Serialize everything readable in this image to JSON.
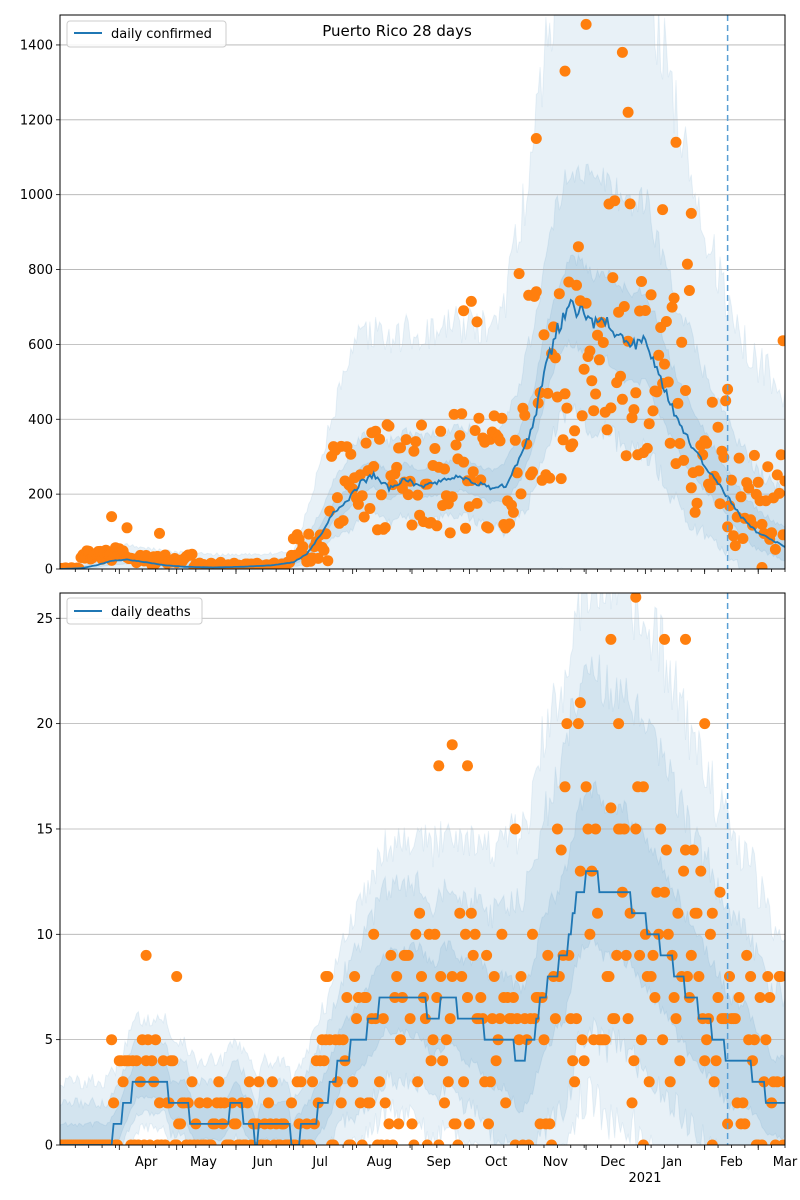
{
  "figure": {
    "title": "Puerto Rico 28 days",
    "x_tick_labels": [
      "Apr",
      "May",
      "Jun",
      "Jul",
      "Aug",
      "Sep",
      "Oct",
      "Nov",
      "Dec",
      "Jan",
      "Feb",
      "Mar"
    ],
    "x_year_label": "2021"
  },
  "chart_data": [
    {
      "type": "line",
      "legend": "daily confirmed",
      "legend_placement": "top-left",
      "grid": "horizontal",
      "xlim": [
        "2020-03-01",
        "2021-03-15"
      ],
      "ylim": [
        0,
        1480
      ],
      "yticks": [
        0,
        200,
        400,
        600,
        800,
        1000,
        1200,
        1400
      ],
      "forecast_start": "2021-02-13",
      "colors": {
        "line": "#1f77b4",
        "points": "#ff7f0e",
        "band": "#1f77b4",
        "vline": "#1f77b4"
      },
      "median_knots": [
        [
          "2020-03-01",
          0
        ],
        [
          "2020-03-12",
          2
        ],
        [
          "2020-03-20",
          10
        ],
        [
          "2020-03-28",
          22
        ],
        [
          "2020-04-05",
          25
        ],
        [
          "2020-04-15",
          18
        ],
        [
          "2020-04-25",
          10
        ],
        [
          "2020-05-05",
          6
        ],
        [
          "2020-05-20",
          4
        ],
        [
          "2020-06-05",
          6
        ],
        [
          "2020-06-20",
          10
        ],
        [
          "2020-07-01",
          18
        ],
        [
          "2020-07-08",
          40
        ],
        [
          "2020-07-15",
          90
        ],
        [
          "2020-07-22",
          150
        ],
        [
          "2020-07-29",
          180
        ],
        [
          "2020-08-05",
          230
        ],
        [
          "2020-08-12",
          250
        ],
        [
          "2020-08-20",
          215
        ],
        [
          "2020-08-28",
          240
        ],
        [
          "2020-09-05",
          220
        ],
        [
          "2020-09-12",
          230
        ],
        [
          "2020-09-20",
          240
        ],
        [
          "2020-09-28",
          245
        ],
        [
          "2020-10-05",
          230
        ],
        [
          "2020-10-12",
          215
        ],
        [
          "2020-10-20",
          225
        ],
        [
          "2020-10-28",
          300
        ],
        [
          "2020-11-04",
          400
        ],
        [
          "2020-11-10",
          540
        ],
        [
          "2020-11-16",
          640
        ],
        [
          "2020-11-22",
          700
        ],
        [
          "2020-11-28",
          690
        ],
        [
          "2020-12-05",
          650
        ],
        [
          "2020-12-12",
          660
        ],
        [
          "2020-12-18",
          620
        ],
        [
          "2020-12-25",
          600
        ],
        [
          "2021-01-01",
          605
        ],
        [
          "2021-01-08",
          520
        ],
        [
          "2021-01-15",
          430
        ],
        [
          "2021-01-22",
          360
        ],
        [
          "2021-01-29",
          300
        ],
        [
          "2021-02-05",
          250
        ],
        [
          "2021-02-12",
          200
        ],
        [
          "2021-02-20",
          140
        ],
        [
          "2021-02-28",
          100
        ],
        [
          "2021-03-07",
          80
        ],
        [
          "2021-03-15",
          60
        ]
      ],
      "band_half_width": [
        [
          0.2,
          [
            [
              "2020-03-01",
              0
            ],
            [
              "2020-07-01",
              8
            ],
            [
              "2020-08-01",
              40
            ],
            [
              "2020-10-15",
              50
            ],
            [
              "2020-11-25",
              130
            ],
            [
              "2021-01-01",
              140
            ],
            [
              "2021-02-13",
              70
            ],
            [
              "2021-03-15",
              50
            ]
          ]
        ],
        [
          0.45,
          [
            [
              "2020-03-01",
              0
            ],
            [
              "2020-04-01",
              15
            ],
            [
              "2020-07-01",
              15
            ],
            [
              "2020-08-01",
              120
            ],
            [
              "2020-10-15",
              140
            ],
            [
              "2020-11-25",
              380
            ],
            [
              "2021-01-01",
              380
            ],
            [
              "2021-02-13",
              200
            ],
            [
              "2021-03-15",
              140
            ]
          ]
        ],
        [
          0.75,
          [
            [
              "2020-03-01",
              0
            ],
            [
              "2020-04-01",
              40
            ],
            [
              "2020-07-01",
              30
            ],
            [
              "2020-08-01",
              380
            ],
            [
              "2020-10-15",
              420
            ],
            [
              "2020-11-25",
              1100
            ],
            [
              "2021-01-01",
              1000
            ],
            [
              "2021-02-13",
              500
            ],
            [
              "2021-03-15",
              420
            ]
          ]
        ]
      ],
      "observed": {
        "segments": [
          {
            "from": "2020-03-01",
            "to": "2020-03-12",
            "base": 2,
            "spread": 4,
            "seed": 1
          },
          {
            "from": "2020-03-12",
            "to": "2020-04-10",
            "base": 40,
            "spread": 35,
            "seed": 2
          },
          {
            "from": "2020-04-10",
            "to": "2020-05-10",
            "base": 25,
            "spread": 30,
            "seed": 3
          },
          {
            "from": "2020-05-10",
            "to": "2020-06-30",
            "base": 10,
            "spread": 18,
            "seed": 4
          },
          {
            "from": "2020-06-30",
            "to": "2020-07-20",
            "base": 60,
            "spread": 90,
            "seed": 5
          },
          {
            "from": "2020-07-20",
            "to": "2020-08-10",
            "base": 220,
            "spread": 250,
            "seed": 6
          },
          {
            "from": "2020-08-10",
            "to": "2020-09-20",
            "base": 240,
            "spread": 300,
            "seed": 7
          },
          {
            "from": "2020-09-20",
            "to": "2020-10-25",
            "base": 260,
            "spread": 330,
            "seed": 8
          },
          {
            "from": "2020-10-25",
            "to": "2020-11-20",
            "base": 500,
            "spread": 600,
            "seed": 9
          },
          {
            "from": "2020-11-20",
            "to": "2020-12-25",
            "base": 650,
            "spread": 700,
            "seed": 10
          },
          {
            "from": "2020-12-25",
            "to": "2021-01-25",
            "base": 560,
            "spread": 600,
            "seed": 11
          },
          {
            "from": "2021-01-25",
            "to": "2021-02-13",
            "base": 300,
            "spread": 320,
            "seed": 12
          },
          {
            "from": "2021-02-13",
            "to": "2021-03-15",
            "base": 180,
            "spread": 260,
            "seed": 13
          }
        ],
        "highlights": [
          [
            "2020-03-28",
            140
          ],
          [
            "2020-04-05",
            110
          ],
          [
            "2020-04-22",
            95
          ],
          [
            "2020-10-02",
            715
          ],
          [
            "2020-10-05",
            660
          ],
          [
            "2020-09-28",
            690
          ],
          [
            "2020-11-05",
            1150
          ],
          [
            "2020-11-20",
            1330
          ],
          [
            "2020-12-01",
            1455
          ],
          [
            "2020-12-20",
            1380
          ],
          [
            "2020-12-23",
            1220
          ],
          [
            "2021-01-17",
            1140
          ],
          [
            "2021-01-10",
            960
          ],
          [
            "2021-01-25",
            950
          ],
          [
            "2021-03-14",
            610
          ],
          [
            "2021-03-15",
            235
          ],
          [
            "2021-03-03",
            4
          ],
          [
            "2021-02-13",
            480
          ]
        ]
      }
    },
    {
      "type": "line",
      "legend": "daily deaths",
      "legend_placement": "top-left",
      "grid": "horizontal",
      "xlim": [
        "2020-03-01",
        "2021-03-15"
      ],
      "ylim": [
        0,
        26.2
      ],
      "yticks": [
        0,
        5,
        10,
        15,
        20,
        25
      ],
      "forecast_start": "2021-02-13",
      "colors": {
        "line": "#1f77b4",
        "points": "#ff7f0e",
        "band": "#1f77b4",
        "vline": "#1f77b4"
      },
      "median_knots": [
        [
          "2020-03-01",
          0
        ],
        [
          "2020-03-26",
          0
        ],
        [
          "2020-04-01",
          1
        ],
        [
          "2020-04-05",
          2
        ],
        [
          "2020-04-10",
          3
        ],
        [
          "2020-04-25",
          3
        ],
        [
          "2020-04-28",
          2
        ],
        [
          "2020-05-05",
          2
        ],
        [
          "2020-05-10",
          1
        ],
        [
          "2020-05-25",
          1
        ],
        [
          "2020-06-01",
          2
        ],
        [
          "2020-06-08",
          1
        ],
        [
          "2020-06-12",
          0
        ],
        [
          "2020-06-14",
          1
        ],
        [
          "2020-06-28",
          1
        ],
        [
          "2020-06-30",
          0
        ],
        [
          "2020-07-10",
          1
        ],
        [
          "2020-07-18",
          2
        ],
        [
          "2020-07-26",
          4
        ],
        [
          "2020-08-05",
          5
        ],
        [
          "2020-08-12",
          6
        ],
        [
          "2020-08-18",
          7
        ],
        [
          "2020-09-05",
          7
        ],
        [
          "2020-09-12",
          6
        ],
        [
          "2020-09-20",
          7
        ],
        [
          "2020-09-28",
          6
        ],
        [
          "2020-10-05",
          6
        ],
        [
          "2020-10-12",
          5
        ],
        [
          "2020-10-20",
          5
        ],
        [
          "2020-10-28",
          4
        ],
        [
          "2020-11-03",
          5
        ],
        [
          "2020-11-08",
          7
        ],
        [
          "2020-11-14",
          8
        ],
        [
          "2020-11-20",
          9
        ],
        [
          "2020-11-27",
          12
        ],
        [
          "2020-12-05",
          13
        ],
        [
          "2020-12-10",
          12
        ],
        [
          "2020-12-20",
          12
        ],
        [
          "2020-12-28",
          11
        ],
        [
          "2021-01-05",
          10
        ],
        [
          "2021-01-12",
          9
        ],
        [
          "2021-01-18",
          8
        ],
        [
          "2021-01-24",
          7
        ],
        [
          "2021-02-01",
          6
        ],
        [
          "2021-02-08",
          5
        ],
        [
          "2021-02-14",
          4
        ],
        [
          "2021-02-22",
          4
        ],
        [
          "2021-03-01",
          3
        ],
        [
          "2021-03-08",
          2
        ],
        [
          "2021-03-15",
          2
        ]
      ],
      "band_half_width": [
        [
          0.6,
          [
            [
              "2020-03-01",
              1
            ],
            [
              "2020-07-01",
              1
            ],
            [
              "2020-08-10",
              2
            ],
            [
              "2020-10-15",
              3
            ],
            [
              "2020-11-25",
              4
            ],
            [
              "2021-01-10",
              4
            ],
            [
              "2021-03-15",
              2
            ]
          ]
        ],
        [
          1.3,
          [
            [
              "2020-03-01",
              2
            ],
            [
              "2020-07-01",
              2
            ],
            [
              "2020-08-10",
              5
            ],
            [
              "2020-10-15",
              6
            ],
            [
              "2020-11-25",
              10
            ],
            [
              "2021-01-10",
              9
            ],
            [
              "2021-03-15",
              5
            ]
          ]
        ],
        [
          2.0,
          [
            [
              "2020-03-01",
              3
            ],
            [
              "2020-07-01",
              3
            ],
            [
              "2020-08-10",
              7
            ],
            [
              "2020-10-15",
              9
            ],
            [
              "2020-11-25",
              14
            ],
            [
              "2021-01-10",
              14
            ],
            [
              "2021-03-15",
              8
            ]
          ]
        ]
      ],
      "observed": {
        "segments": [
          {
            "from": "2020-03-01",
            "to": "2020-03-26",
            "base": 0,
            "spread": 1,
            "seed": 21
          },
          {
            "from": "2020-03-26",
            "to": "2020-04-30",
            "base": 2,
            "spread": 7,
            "seed": 22
          },
          {
            "from": "2020-04-30",
            "to": "2020-07-10",
            "base": 1,
            "spread": 4,
            "seed": 23
          },
          {
            "from": "2020-07-10",
            "to": "2020-08-10",
            "base": 3,
            "spread": 10,
            "seed": 24
          },
          {
            "from": "2020-08-10",
            "to": "2020-10-20",
            "base": 5,
            "spread": 12,
            "seed": 25
          },
          {
            "from": "2020-10-20",
            "to": "2020-11-15",
            "base": 5,
            "spread": 11,
            "seed": 26
          },
          {
            "from": "2020-11-15",
            "to": "2021-01-10",
            "base": 11,
            "spread": 18,
            "seed": 27
          },
          {
            "from": "2021-01-10",
            "to": "2021-02-13",
            "base": 8,
            "spread": 12,
            "seed": 28
          },
          {
            "from": "2021-02-13",
            "to": "2021-03-15",
            "base": 4,
            "spread": 10,
            "seed": 29
          }
        ],
        "highlights": [
          [
            "2020-04-15",
            9
          ],
          [
            "2020-05-01",
            8
          ],
          [
            "2020-07-18",
            8
          ],
          [
            "2020-09-22",
            19
          ],
          [
            "2020-09-30",
            18
          ],
          [
            "2020-09-15",
            18
          ],
          [
            "2020-10-25",
            15
          ],
          [
            "2020-11-28",
            21
          ],
          [
            "2020-12-14",
            24
          ],
          [
            "2020-12-18",
            20
          ],
          [
            "2020-12-27",
            26
          ],
          [
            "2021-01-11",
            24
          ],
          [
            "2021-01-22",
            24
          ],
          [
            "2021-02-01",
            20
          ],
          [
            "2020-12-31",
            0
          ],
          [
            "2021-02-05",
            0
          ],
          [
            "2021-03-15",
            3
          ]
        ]
      }
    }
  ]
}
